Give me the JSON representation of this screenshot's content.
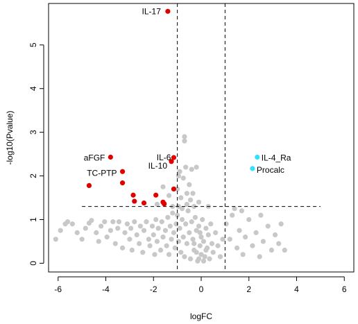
{
  "colors": {
    "background": "#ffffff",
    "axis": "#000000",
    "non_significant": "#c8c8c8",
    "down_significant": "#e00000",
    "up_significant": "#33e0ff",
    "threshold_line": "#000000"
  },
  "chart_data": {
    "type": "scatter",
    "title": "",
    "xlabel": "logFC",
    "ylabel": "-log10(Pvalue)",
    "xlim": [
      -6.4,
      6.4
    ],
    "ylim": [
      -0.2,
      5.95
    ],
    "x_ticks": [
      -6,
      -4,
      -2,
      0,
      2,
      4,
      6
    ],
    "y_ticks": [
      0,
      1,
      2,
      3,
      4,
      5
    ],
    "grid": false,
    "legend": "none",
    "thresholds": {
      "logFC": [
        -1,
        1
      ],
      "neg_log10_pvalue": 1.3,
      "horizontal_line_x_range": [
        -5,
        5
      ],
      "style": "dashed"
    },
    "significant_down": [
      {
        "label": "IL-17",
        "x": -1.4,
        "y": 5.77
      },
      {
        "label": "aFGF",
        "x": -3.8,
        "y": 2.43
      },
      {
        "label": "TC-PTP",
        "x": -3.3,
        "y": 2.1
      },
      {
        "label": "IL-6",
        "x": -1.15,
        "y": 2.42
      },
      {
        "label": "IL-10",
        "x": -1.25,
        "y": 2.33
      },
      {
        "x": -4.7,
        "y": 1.78
      },
      {
        "x": -3.3,
        "y": 1.84
      },
      {
        "x": -2.85,
        "y": 1.56
      },
      {
        "x": -2.8,
        "y": 1.42
      },
      {
        "x": -2.4,
        "y": 1.38
      },
      {
        "x": -1.9,
        "y": 1.56
      },
      {
        "x": -1.6,
        "y": 1.4
      },
      {
        "x": -1.55,
        "y": 1.36
      },
      {
        "x": -1.15,
        "y": 1.7
      }
    ],
    "significant_up": [
      {
        "label": "IL-4_Ra",
        "x": 2.35,
        "y": 2.43
      },
      {
        "label": "Procalc",
        "x": 2.15,
        "y": 2.17
      }
    ],
    "non_significant_points": [
      [
        -6.1,
        0.55
      ],
      [
        -5.9,
        0.75
      ],
      [
        -5.7,
        0.9
      ],
      [
        -5.6,
        0.95
      ],
      [
        -5.4,
        0.9
      ],
      [
        -5.2,
        0.7
      ],
      [
        -5.0,
        0.55
      ],
      [
        -4.85,
        0.8
      ],
      [
        -4.7,
        0.92
      ],
      [
        -4.6,
        0.98
      ],
      [
        -4.4,
        0.7
      ],
      [
        -4.3,
        0.5
      ],
      [
        -4.2,
        0.85
      ],
      [
        -4.05,
        0.95
      ],
      [
        -3.95,
        0.6
      ],
      [
        -3.8,
        0.75
      ],
      [
        -3.7,
        0.95
      ],
      [
        -3.6,
        0.45
      ],
      [
        -3.5,
        0.8
      ],
      [
        -3.45,
        0.95
      ],
      [
        -3.3,
        0.35
      ],
      [
        -3.2,
        0.7
      ],
      [
        -3.1,
        0.9
      ],
      [
        -3.0,
        0.55
      ],
      [
        -2.95,
        0.8
      ],
      [
        -2.9,
        0.3
      ],
      [
        -2.8,
        0.95
      ],
      [
        -2.7,
        0.65
      ],
      [
        -2.6,
        0.45
      ],
      [
        -2.55,
        0.85
      ],
      [
        -2.45,
        0.25
      ],
      [
        -2.4,
        0.75
      ],
      [
        -2.3,
        0.95
      ],
      [
        -2.2,
        0.55
      ],
      [
        -2.15,
        0.4
      ],
      [
        -2.05,
        0.85
      ],
      [
        -2.0,
        0.65
      ],
      [
        -1.95,
        0.2
      ],
      [
        -1.9,
        1.0
      ],
      [
        -1.85,
        0.5
      ],
      [
        -1.8,
        0.8
      ],
      [
        -1.7,
        0.3
      ],
      [
        -1.65,
        0.95
      ],
      [
        -1.6,
        0.6
      ],
      [
        -1.5,
        0.75
      ],
      [
        -1.45,
        0.4
      ],
      [
        -1.4,
        1.05
      ],
      [
        -1.35,
        0.2
      ],
      [
        -1.3,
        0.85
      ],
      [
        -1.25,
        0.55
      ],
      [
        -1.2,
        1.15
      ],
      [
        -1.15,
        0.7
      ],
      [
        -1.1,
        0.35
      ],
      [
        -1.05,
        0.9
      ],
      [
        -1.0,
        1.1
      ],
      [
        -0.95,
        0.5
      ],
      [
        -0.9,
        0.8
      ],
      [
        -0.85,
        0.25
      ],
      [
        -0.8,
        1.0
      ],
      [
        -0.75,
        0.6
      ],
      [
        -0.7,
        0.15
      ],
      [
        -0.65,
        0.9
      ],
      [
        -0.6,
        0.45
      ],
      [
        -0.55,
        1.2
      ],
      [
        -0.5,
        0.7
      ],
      [
        -0.45,
        0.1
      ],
      [
        -0.4,
        0.95
      ],
      [
        -0.35,
        0.55
      ],
      [
        -0.3,
        0.3
      ],
      [
        -0.25,
        1.05
      ],
      [
        -0.2,
        0.75
      ],
      [
        -0.15,
        0.05
      ],
      [
        -0.1,
        0.85
      ],
      [
        -0.05,
        0.4
      ],
      [
        0.0,
        0.6
      ],
      [
        0.0,
        0.2
      ],
      [
        0.05,
        1.0
      ],
      [
        0.1,
        0.5
      ],
      [
        0.15,
        0.15
      ],
      [
        0.2,
        0.8
      ],
      [
        0.25,
        0.35
      ],
      [
        0.3,
        0.65
      ],
      [
        0.35,
        0.1
      ],
      [
        0.4,
        0.9
      ],
      [
        0.45,
        0.45
      ],
      [
        0.5,
        0.25
      ],
      [
        0.6,
        0.7
      ],
      [
        0.7,
        0.4
      ],
      [
        0.8,
        0.15
      ],
      [
        0.9,
        0.55
      ],
      [
        -0.2,
        0.25
      ],
      [
        -0.1,
        0.1
      ],
      [
        0.1,
        0.05
      ],
      [
        -0.3,
        0.45
      ],
      [
        0.2,
        0.3
      ],
      [
        -0.05,
        0.7
      ],
      [
        -1.0,
        1.7
      ],
      [
        -0.95,
        2.0
      ],
      [
        -0.9,
        2.1
      ],
      [
        -0.95,
        1.3
      ],
      [
        -0.85,
        1.5
      ],
      [
        -0.8,
        1.25
      ],
      [
        -0.7,
        2.8
      ],
      [
        -0.7,
        2.9
      ],
      [
        -0.65,
        2.2
      ],
      [
        -0.75,
        1.95
      ],
      [
        -0.6,
        1.6
      ],
      [
        -0.6,
        1.35
      ],
      [
        -0.5,
        1.8
      ],
      [
        -0.45,
        1.45
      ],
      [
        -0.4,
        2.15
      ],
      [
        -0.35,
        1.6
      ],
      [
        -0.3,
        1.3
      ],
      [
        -0.2,
        2.2
      ],
      [
        -1.2,
        1.3
      ],
      [
        -1.35,
        1.55
      ],
      [
        -1.6,
        1.75
      ],
      [
        -1.85,
        1.35
      ],
      [
        -0.1,
        1.4
      ],
      [
        0.3,
        1.3
      ],
      [
        1.05,
        0.9
      ],
      [
        1.2,
        0.55
      ],
      [
        1.3,
        1.1
      ],
      [
        1.5,
        0.35
      ],
      [
        1.6,
        0.75
      ],
      [
        1.75,
        0.2
      ],
      [
        1.85,
        0.6
      ],
      [
        2.0,
        1.0
      ],
      [
        2.15,
        0.4
      ],
      [
        2.3,
        0.7
      ],
      [
        2.45,
        0.15
      ],
      [
        2.6,
        0.5
      ],
      [
        2.8,
        0.85
      ],
      [
        2.95,
        0.3
      ],
      [
        3.1,
        0.65
      ],
      [
        3.25,
        0.45
      ],
      [
        3.35,
        0.9
      ],
      [
        3.5,
        0.3
      ],
      [
        1.4,
        1.25
      ],
      [
        1.7,
        1.2
      ],
      [
        2.5,
        1.1
      ]
    ]
  }
}
